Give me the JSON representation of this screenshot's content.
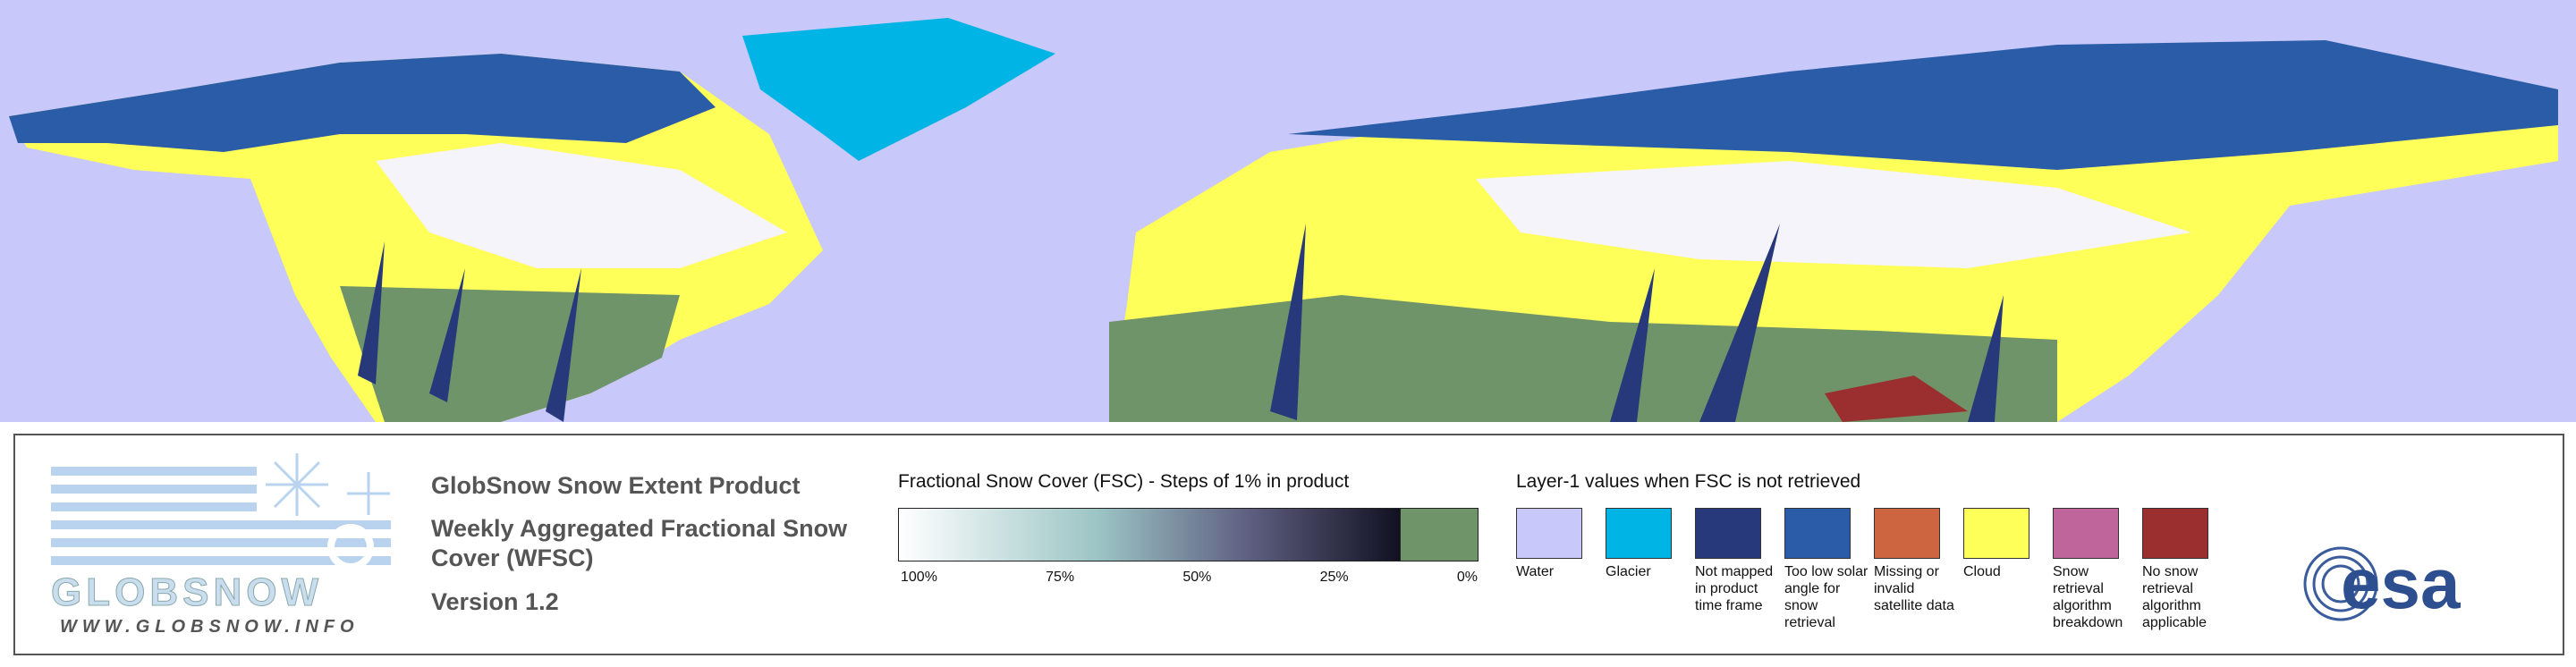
{
  "logo": {
    "text": "GLOBSNOW",
    "url": "WWW.GLOBSNOW.INFO"
  },
  "product": {
    "title": "GlobSnow Snow Extent Product",
    "subtitle": "Weekly Aggregated Fractional Snow Cover (WFSC)",
    "version": "Version 1.2"
  },
  "fsc_legend": {
    "title": "Fractional Snow Cover (FSC) - Steps of 1% in product",
    "ticks": [
      "100%",
      "75%",
      "50%",
      "25%",
      "0%"
    ]
  },
  "layer1_legend": {
    "title": "Layer-1 values when FSC is not retrieved",
    "items": [
      {
        "label": "Water",
        "color": "#c8c8fa"
      },
      {
        "label": "Glacier",
        "color": "#00b4e6"
      },
      {
        "label": "Not mapped in product time frame",
        "color": "#27397a"
      },
      {
        "label": "Too low solar angle for snow retrieval",
        "color": "#2a5ca8"
      },
      {
        "label": "Missing or invalid satellite data",
        "color": "#cd6640"
      },
      {
        "label": "Cloud",
        "color": "#ffff5a"
      },
      {
        "label": "Snow retrieval algorithm breakdown",
        "color": "#c0649c"
      },
      {
        "label": "No snow retrieval algorithm applicable",
        "color": "#9b2e2e"
      }
    ]
  },
  "esa_logo": "esa"
}
